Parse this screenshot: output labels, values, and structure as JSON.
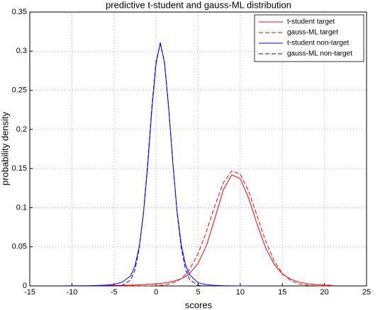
{
  "chart_data": {
    "type": "line",
    "title": "predictive t-student and gauss-ML distribution",
    "x_label": "scores",
    "y_label": "probability density",
    "x": [
      -11,
      -8,
      -6,
      -5,
      -4,
      -3,
      -2.5,
      -2,
      -1.5,
      -1,
      -0.5,
      0,
      0.5,
      1,
      1.5,
      2,
      2.5,
      3,
      3.5,
      4,
      5,
      6,
      7,
      8,
      9,
      10,
      11,
      12,
      13,
      14,
      15,
      16,
      17,
      18,
      19,
      20,
      21
    ],
    "series": [
      {
        "name": "t-student target",
        "color": "#ff0000",
        "dash": false,
        "values": [
          0.0002,
          0.0003,
          0.0005,
          0.0006,
          0.0008,
          0.001,
          0.0012,
          0.0014,
          0.0016,
          0.002,
          0.0023,
          0.0027,
          0.0032,
          0.0039,
          0.0047,
          0.0058,
          0.0073,
          0.0092,
          0.012,
          0.016,
          0.029,
          0.052,
          0.087,
          0.123,
          0.142,
          0.137,
          0.112,
          0.079,
          0.049,
          0.028,
          0.015,
          0.0085,
          0.0048,
          0.0028,
          0.0017,
          0.0011,
          0.0007
        ]
      },
      {
        "name": "gauss-ML target",
        "color": "#ff0000",
        "dash": true,
        "values": [
          0,
          0,
          0,
          0,
          0,
          0,
          0,
          0,
          0,
          0,
          0,
          0.0004,
          0.0007,
          0.0013,
          0.0023,
          0.0038,
          0.0062,
          0.0097,
          0.0147,
          0.0215,
          0.0416,
          0.07,
          0.103,
          0.132,
          0.147,
          0.143,
          0.121,
          0.0898,
          0.058,
          0.0326,
          0.016,
          0.0068,
          0.0025,
          0.0008,
          0.0002,
          0.0001,
          0
        ]
      },
      {
        "name": "t-student non-target",
        "color": "#0000ff",
        "dash": false,
        "values": [
          0,
          0.0002,
          0.001,
          0.002,
          0.005,
          0.013,
          0.026,
          0.05,
          0.092,
          0.153,
          0.225,
          0.284,
          0.311,
          0.285,
          0.227,
          0.156,
          0.095,
          0.052,
          0.027,
          0.014,
          0.004,
          0.0015,
          0.0006,
          0.0003,
          0.0001,
          0,
          0,
          null,
          null,
          null,
          null,
          null,
          null,
          null,
          null,
          null,
          null
        ]
      },
      {
        "name": "gauss-ML non-target",
        "color": "#0000ff",
        "dash": true,
        "values": [
          0,
          0,
          0,
          0,
          0.0007,
          0.0078,
          0.0208,
          0.0473,
          0.093,
          0.157,
          0.229,
          0.287,
          0.309,
          0.287,
          0.229,
          0.157,
          0.093,
          0.0473,
          0.0208,
          0.0078,
          0.0007,
          0,
          0,
          0,
          0,
          0,
          0,
          null,
          null,
          null,
          null,
          null,
          null,
          null,
          null,
          null,
          null
        ]
      }
    ],
    "xlim": [
      -15,
      25
    ],
    "xticks": [
      -15,
      -10,
      -5,
      0,
      5,
      10,
      15,
      20,
      25
    ],
    "ylim": [
      0,
      0.35
    ],
    "yticks": [
      0,
      0.05,
      0.1,
      0.15,
      0.2,
      0.25,
      0.3,
      0.35
    ],
    "grid": true,
    "legend": "top-right"
  }
}
